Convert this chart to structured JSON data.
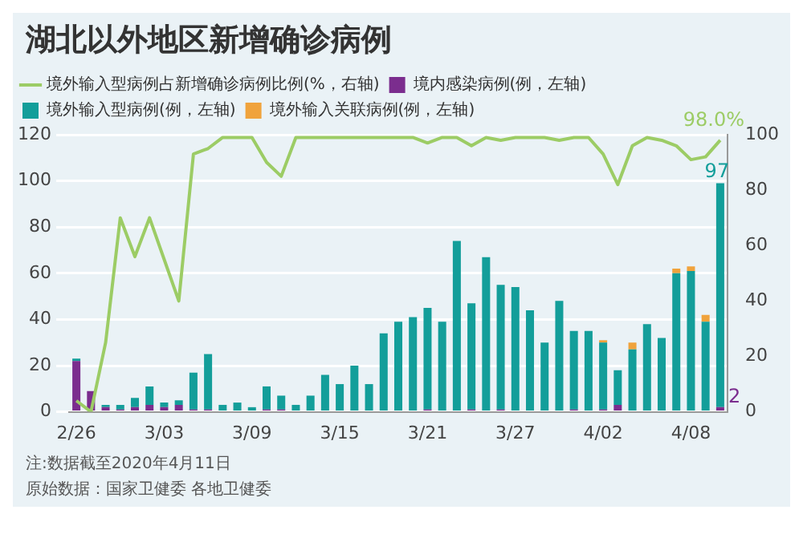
{
  "chart_data": {
    "type": "bar",
    "title": "湖北以外地区新增确诊病例",
    "categories": [
      "2/26",
      null,
      null,
      null,
      null,
      null,
      "3/03",
      null,
      null,
      null,
      null,
      null,
      "3/09",
      null,
      null,
      null,
      null,
      null,
      "3/15",
      null,
      null,
      null,
      null,
      null,
      "3/21",
      null,
      null,
      null,
      null,
      null,
      "3/27",
      null,
      null,
      null,
      null,
      null,
      "4/02",
      null,
      null,
      null,
      null,
      null,
      "4/08",
      null,
      null
    ],
    "stacked": true,
    "series": [
      {
        "name": "境内感染病例(例，左轴)",
        "color": "#7b2d8e",
        "values": [
          22,
          9,
          2,
          1,
          2,
          3,
          2,
          3,
          1,
          1,
          0,
          0,
          0,
          1,
          1,
          0,
          0,
          0,
          0,
          0,
          0,
          0,
          0,
          0,
          1,
          0,
          0,
          1,
          0,
          1,
          0,
          0,
          0,
          0,
          1,
          0,
          1,
          3,
          0,
          0,
          0,
          0,
          0,
          0,
          2
        ],
        "value_labels": [
          null,
          null,
          null,
          null,
          null,
          null,
          null,
          null,
          null,
          null,
          null,
          null,
          null,
          null,
          null,
          null,
          null,
          null,
          null,
          null,
          null,
          null,
          null,
          null,
          null,
          null,
          null,
          null,
          null,
          null,
          null,
          null,
          null,
          null,
          null,
          null,
          null,
          null,
          null,
          null,
          null,
          null,
          null,
          null,
          "2"
        ]
      },
      {
        "name": "境外输入型病例(例，左轴)",
        "color": "#139e9a",
        "values": [
          1,
          0,
          1,
          2,
          4,
          8,
          2,
          2,
          16,
          24,
          3,
          4,
          2,
          10,
          6,
          3,
          7,
          16,
          12,
          20,
          12,
          34,
          39,
          41,
          44,
          39,
          74,
          46,
          67,
          54,
          54,
          44,
          30,
          48,
          34,
          35,
          29,
          15,
          27,
          38,
          32,
          60,
          61,
          39,
          97
        ],
        "value_labels": [
          null,
          null,
          null,
          null,
          null,
          null,
          null,
          null,
          null,
          null,
          null,
          null,
          null,
          null,
          null,
          null,
          null,
          null,
          null,
          null,
          null,
          null,
          null,
          null,
          null,
          null,
          null,
          null,
          null,
          null,
          null,
          null,
          null,
          null,
          null,
          null,
          null,
          null,
          null,
          null,
          null,
          null,
          null,
          null,
          "97"
        ]
      },
      {
        "name": "境外输入关联病例(例，左轴)",
        "color": "#f0a33c",
        "values": [
          0,
          0,
          0,
          0,
          0,
          0,
          0,
          0,
          0,
          0,
          0,
          0,
          0,
          0,
          0,
          0,
          0,
          0,
          0,
          0,
          0,
          0,
          0,
          0,
          0,
          0,
          0,
          0,
          0,
          0,
          0,
          0,
          0,
          0,
          0,
          0,
          1,
          0,
          3,
          0,
          0,
          2,
          2,
          3,
          0
        ]
      },
      {
        "name": "境外输入型病例占新增确诊病例比例(%，右轴)",
        "type": "line",
        "axis": "y2",
        "color": "#9ccc65",
        "values": [
          4,
          0,
          25,
          70,
          56,
          70,
          55,
          40,
          93,
          95,
          99,
          99,
          99,
          90,
          85,
          99,
          99,
          99,
          99,
          99,
          99,
          99,
          99,
          99,
          97,
          99,
          99,
          96,
          99,
          98,
          99,
          99,
          99,
          98,
          99,
          99,
          93,
          82,
          96,
          99,
          98,
          96,
          91,
          92,
          98.0
        ],
        "value_labels": [
          null,
          null,
          null,
          null,
          null,
          null,
          null,
          null,
          null,
          null,
          null,
          null,
          null,
          null,
          null,
          null,
          null,
          null,
          null,
          null,
          null,
          null,
          null,
          null,
          null,
          null,
          null,
          null,
          null,
          null,
          null,
          null,
          null,
          null,
          null,
          null,
          null,
          null,
          null,
          null,
          null,
          null,
          null,
          null,
          "98.0%"
        ]
      }
    ],
    "ylim": [
      0,
      120
    ],
    "yticks": [
      0,
      20,
      40,
      60,
      80,
      100,
      120
    ],
    "y2lim": [
      0,
      100
    ],
    "y2ticks": [
      0,
      20,
      40,
      60,
      80,
      100
    ],
    "grid": "y",
    "legend": "top",
    "marker": "none",
    "line_style": "solid",
    "annotations": [
      "注:数据截至2020年4月11日",
      "原始数据：国家卫健委 各地卫健委"
    ]
  }
}
